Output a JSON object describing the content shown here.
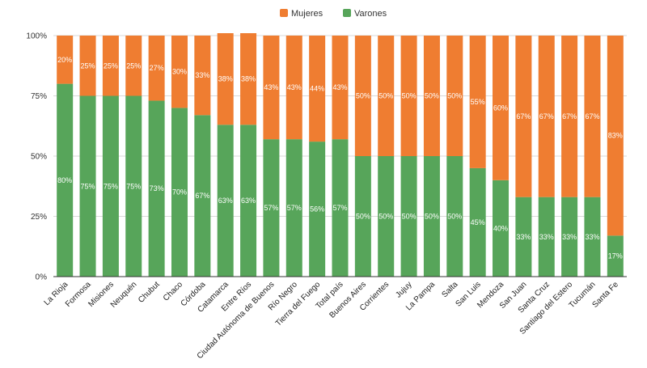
{
  "chart_data": {
    "type": "bar",
    "stacked": true,
    "percent": true,
    "categories": [
      "La Rioja",
      "Formosa",
      "Misiones",
      "Neuquén",
      "Chubut",
      "Chaco",
      "Córdoba",
      "Catamarca",
      "Entre Ríos",
      "Ciudad Autónoma de Buenos",
      "Río Negro",
      "Tierra del Fuego",
      "Total país",
      "Buenos Aires",
      "Corrientes",
      "Jujuy",
      "La Pampa",
      "Salta",
      "San Luis",
      "Mendoza",
      "San Juan",
      "Santa Cruz",
      "Santiago del Estero",
      "Tucumán",
      "Santa Fe"
    ],
    "series": [
      {
        "name": "Varones",
        "color": "#57a55a",
        "values": [
          80,
          75,
          75,
          75,
          73,
          70,
          67,
          63,
          63,
          57,
          57,
          56,
          57,
          50,
          50,
          50,
          50,
          50,
          45,
          40,
          33,
          33,
          33,
          33,
          17
        ],
        "labels": [
          "80%",
          "75%",
          "75%",
          "75%",
          "73%",
          "70%",
          "67%",
          "63%",
          "63%",
          "57%",
          "57%",
          "56%",
          "57%",
          "50%",
          "50%",
          "50%",
          "50%",
          "50%",
          "45%",
          "40%",
          "33%",
          "33%",
          "33%",
          "33%",
          "17%"
        ]
      },
      {
        "name": "Mujeres",
        "color": "#ef7d31",
        "values": [
          20,
          25,
          25,
          25,
          27,
          30,
          33,
          38,
          38,
          43,
          43,
          44,
          43,
          50,
          50,
          50,
          50,
          50,
          55,
          60,
          67,
          67,
          67,
          67,
          83
        ],
        "labels": [
          "20%",
          "25%",
          "25%",
          "25%",
          "27%",
          "30%",
          "33%",
          "38%",
          "38%",
          "43%",
          "43%",
          "44%",
          "43%",
          "50%",
          "50%",
          "50%",
          "50%",
          "50%",
          "55%",
          "60%",
          "67%",
          "67%",
          "67%",
          "67%",
          "83%"
        ]
      }
    ],
    "legend_order": [
      "Mujeres",
      "Varones"
    ],
    "yticks": [
      "0%",
      "25%",
      "50%",
      "75%",
      "100%"
    ],
    "ylim": [
      0,
      100
    ],
    "legend_position": "top-center",
    "grid": true
  }
}
